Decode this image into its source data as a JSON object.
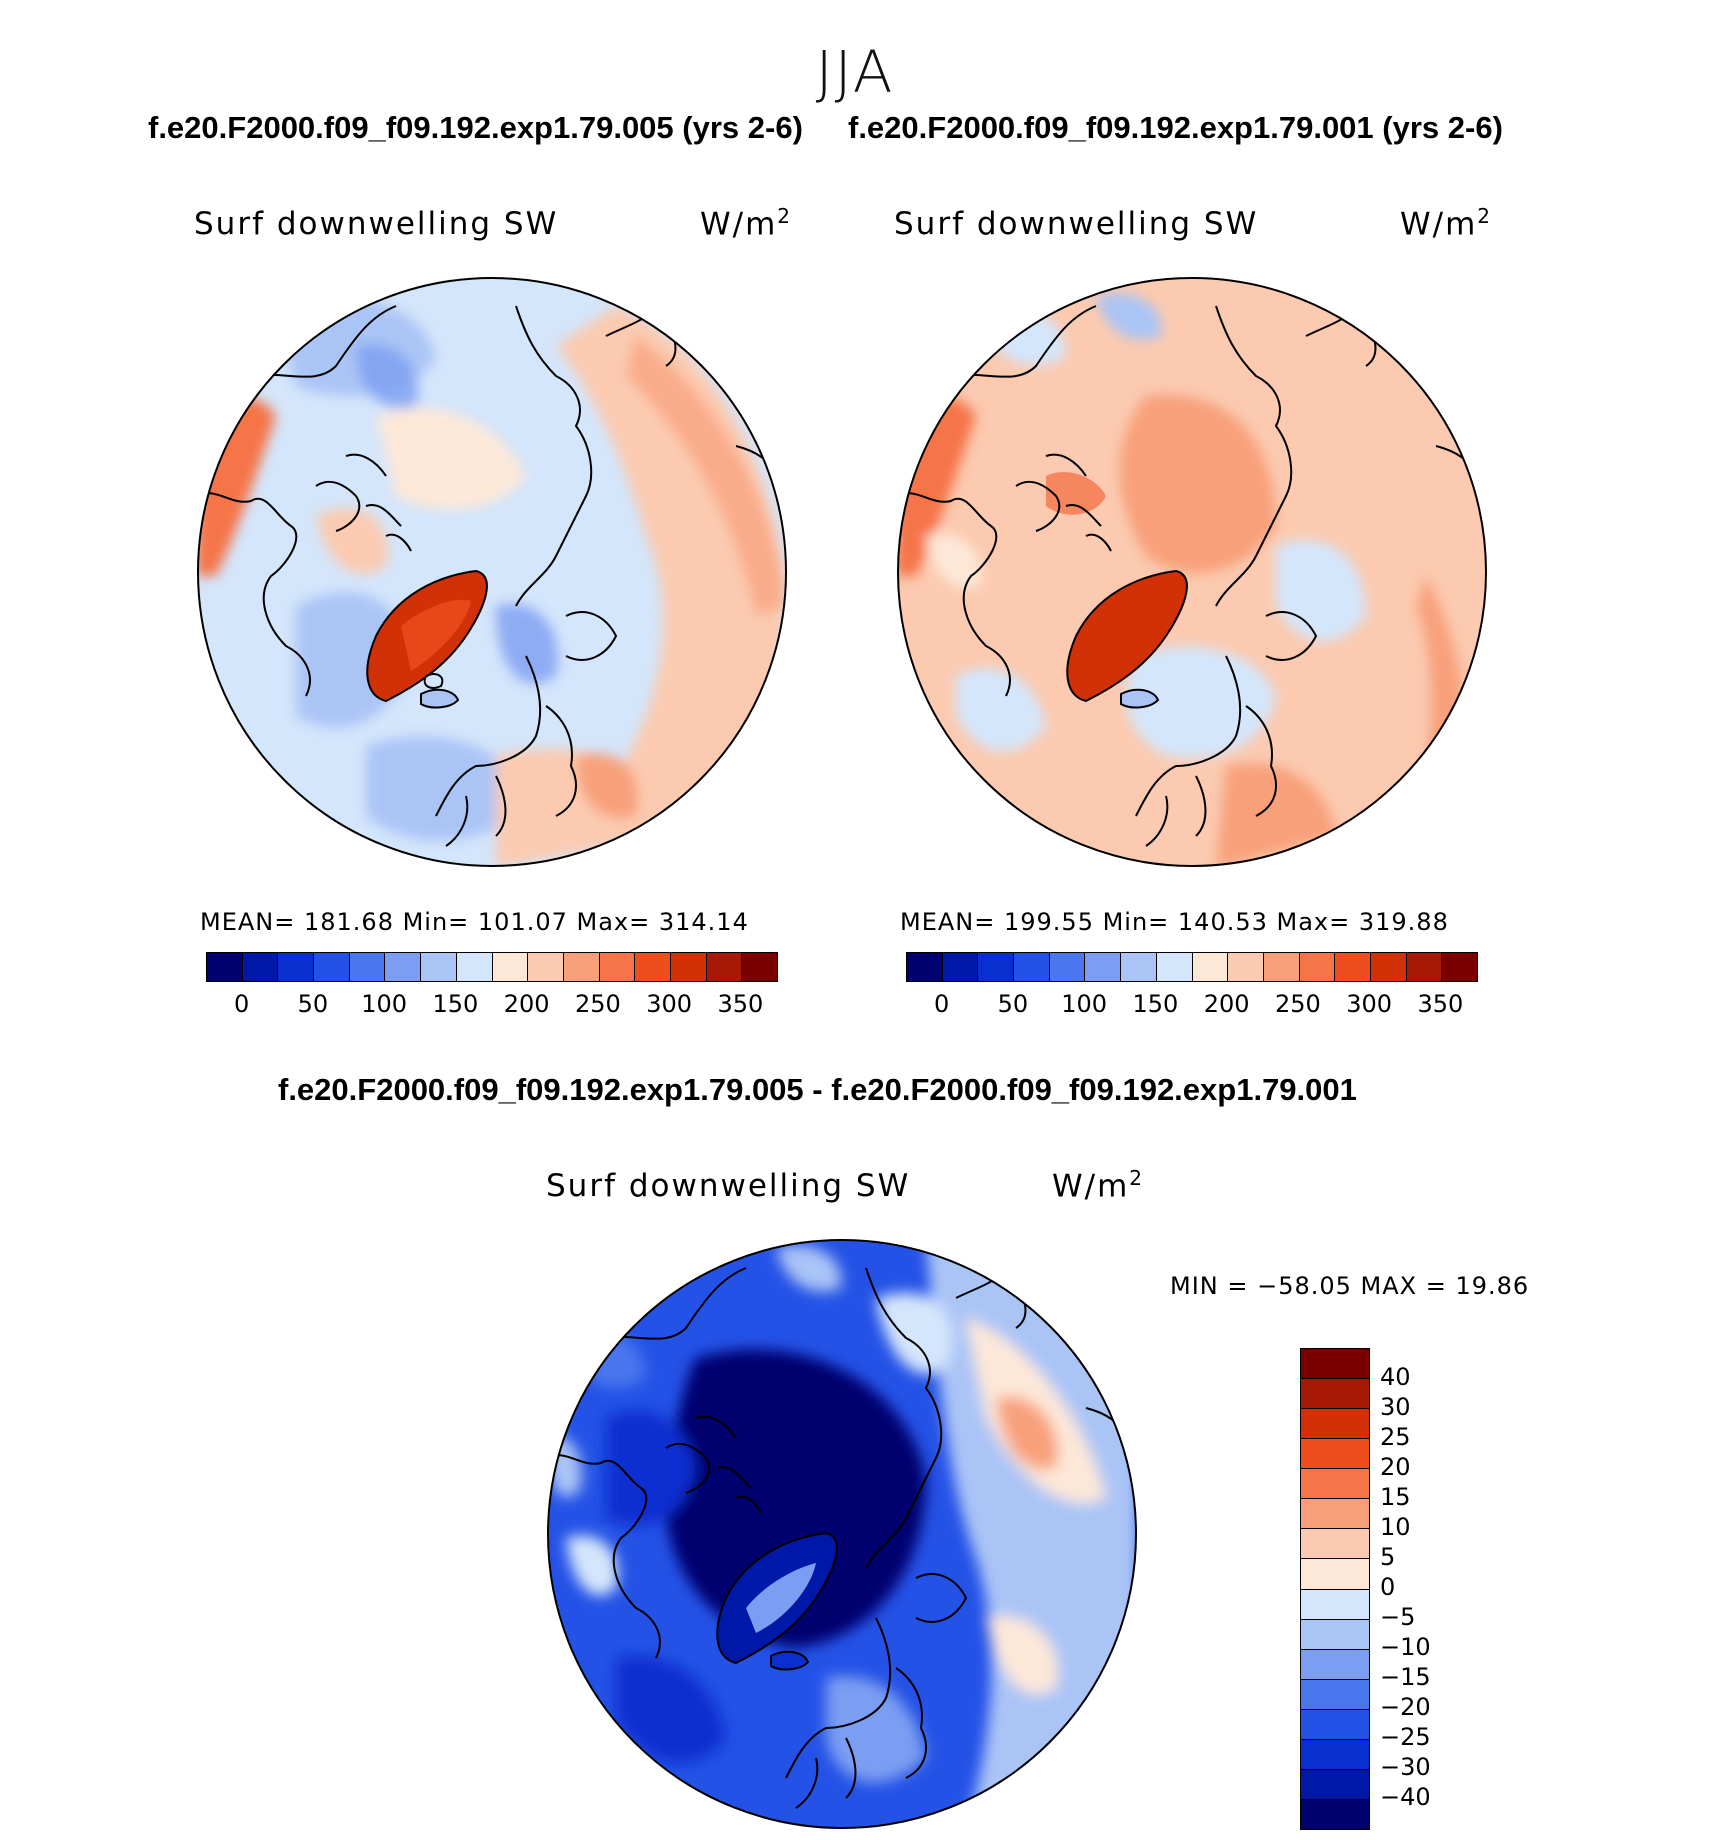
{
  "season": "JJA",
  "top_titles": {
    "left": "f.e20.F2000.f09_f09.192.exp1.79.005 (yrs 2-6)",
    "right": "f.e20.F2000.f09_f09.192.exp1.79.001 (yrs 2-6)"
  },
  "diff_title": "f.e20.F2000.f09_f09.192.exp1.79.005 - f.e20.F2000.f09_f09.192.exp1.79.001",
  "panels": {
    "left": {
      "label": "Surf downwelling SW",
      "units_base": "W/m",
      "units_exp": "2",
      "stats": "MEAN= 181.68   Min= 101.07   Max= 314.14"
    },
    "right": {
      "label": "Surf downwelling SW",
      "units_base": "W/m",
      "units_exp": "2",
      "stats": "MEAN= 199.55   Min= 140.53   Max= 319.88"
    },
    "diff": {
      "label": "Surf downwelling SW",
      "units_base": "W/m",
      "units_exp": "2",
      "stats": "MIN = −58.05 MAX =   19.86"
    }
  },
  "abs_colorbar": {
    "colors": [
      "#00006e",
      "#0018a8",
      "#0a2fd0",
      "#2452e6",
      "#4a76ee",
      "#7c9ef2",
      "#aac4f6",
      "#d4e6fb",
      "#fde8d8",
      "#fbcab0",
      "#f8a07a",
      "#f57448",
      "#ee4d1e",
      "#d23006",
      "#a81806",
      "#7a0000"
    ],
    "ticks": [
      "0",
      "50",
      "100",
      "150",
      "200",
      "250",
      "300",
      "350"
    ]
  },
  "diff_colorbar": {
    "colors": [
      "#7a0000",
      "#a81806",
      "#d23006",
      "#ee4d1e",
      "#f57448",
      "#f8a07a",
      "#fbcab0",
      "#fde8d8",
      "#d4e6fb",
      "#aac4f6",
      "#7c9ef2",
      "#4a76ee",
      "#2452e6",
      "#0a2fd0",
      "#0018a8",
      "#00006e"
    ],
    "ticks": [
      "40",
      "30",
      "25",
      "20",
      "15",
      "10",
      "5",
      "0",
      "−5",
      "−10",
      "−15",
      "−20",
      "−25",
      "−30",
      "−40"
    ]
  }
}
